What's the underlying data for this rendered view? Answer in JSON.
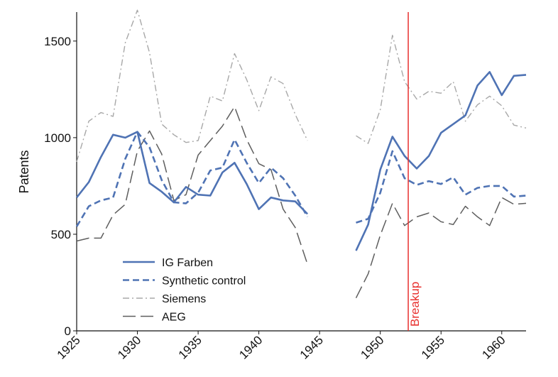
{
  "chart_data": {
    "type": "line",
    "title": "",
    "xlabel": "",
    "ylabel": "Patents",
    "xlim": [
      1925,
      1962
    ],
    "ylim": [
      0,
      1650
    ],
    "x_ticks": [
      "1925",
      "1930",
      "1935",
      "1940",
      "1945",
      "1950",
      "1955",
      "1960"
    ],
    "y_ticks": [
      "0",
      "500",
      "1000",
      "1500"
    ],
    "grid": false,
    "legend_position": "bottom-left",
    "series": [
      {
        "name": "IG Farben",
        "color": "#4f73b4",
        "dash": "solid",
        "segments": [
          {
            "x": [
              1925,
              1926,
              1927,
              1928,
              1929,
              1930,
              1931,
              1932,
              1933,
              1934,
              1935,
              1936,
              1937,
              1938,
              1939,
              1940,
              1941,
              1942,
              1943,
              1944
            ],
            "y": [
              690,
              770,
              900,
              1015,
              1000,
              1030,
              765,
              720,
              665,
              745,
              705,
              700,
              820,
              870,
              760,
              630,
              690,
              675,
              670,
              605
            ]
          },
          {
            "x": [
              1948,
              1949,
              1950,
              1951,
              1952,
              1953,
              1954,
              1955,
              1956,
              1957,
              1958,
              1959,
              1960,
              1961,
              1962
            ],
            "y": [
              415,
              550,
              835,
              1005,
              905,
              840,
              905,
              1025,
              1070,
              1115,
              1270,
              1340,
              1220,
              1320,
              1325
            ]
          }
        ]
      },
      {
        "name": "Synthetic control",
        "color": "#4f73b4",
        "dash": "dashed",
        "segments": [
          {
            "x": [
              1925,
              1926,
              1927,
              1928,
              1929,
              1930,
              1931,
              1932,
              1933,
              1934,
              1935,
              1936,
              1937,
              1938,
              1939,
              1940,
              1941,
              1942,
              1943,
              1944
            ],
            "y": [
              540,
              645,
              675,
              690,
              890,
              1030,
              950,
              780,
              665,
              660,
              715,
              830,
              845,
              990,
              870,
              765,
              845,
              790,
              700,
              590
            ]
          },
          {
            "x": [
              1948,
              1949,
              1950,
              1951,
              1952,
              1953,
              1954,
              1955,
              1956,
              1957,
              1958,
              1959,
              1960,
              1961,
              1962
            ],
            "y": [
              560,
              580,
              715,
              930,
              790,
              755,
              775,
              760,
              795,
              705,
              740,
              750,
              750,
              695,
              700
            ]
          }
        ]
      },
      {
        "name": "Siemens",
        "color": "#a8a8a8",
        "dash": "dashdot",
        "segments": [
          {
            "x": [
              1925,
              1926,
              1927,
              1928,
              1929,
              1930,
              1931,
              1932,
              1933,
              1934,
              1935,
              1936,
              1937,
              1938,
              1939,
              1940,
              1941,
              1942,
              1943,
              1944
            ],
            "y": [
              875,
              1085,
              1130,
              1110,
              1490,
              1660,
              1440,
              1070,
              1015,
              975,
              985,
              1215,
              1190,
              1435,
              1300,
              1140,
              1315,
              1280,
              1120,
              985
            ]
          },
          {
            "x": [
              1948,
              1949,
              1950,
              1951,
              1952,
              1953,
              1954,
              1955,
              1956,
              1957,
              1958,
              1959,
              1960,
              1961,
              1962
            ],
            "y": [
              1010,
              970,
              1145,
              1530,
              1290,
              1200,
              1240,
              1230,
              1290,
              1085,
              1170,
              1215,
              1165,
              1065,
              1050
            ]
          }
        ]
      },
      {
        "name": "AEG",
        "color": "#5e5e5e",
        "dash": "longdash",
        "segments": [
          {
            "x": [
              1925,
              1926,
              1927,
              1928,
              1929,
              1930,
              1931,
              1932,
              1933,
              1934,
              1935,
              1936,
              1937,
              1938,
              1939,
              1940,
              1941,
              1942,
              1943,
              1944
            ],
            "y": [
              465,
              480,
              480,
              600,
              655,
              930,
              1035,
              915,
              675,
              705,
              910,
              985,
              1060,
              1160,
              990,
              865,
              835,
              630,
              535,
              345
            ]
          },
          {
            "x": [
              1948,
              1949,
              1950,
              1951,
              1952,
              1953,
              1954,
              1955,
              1956,
              1957,
              1958,
              1959,
              1960,
              1961,
              1962
            ],
            "y": [
              170,
              295,
              495,
              660,
              545,
              590,
              610,
              565,
              550,
              645,
              590,
              545,
              690,
              655,
              660
            ]
          }
        ]
      }
    ],
    "event_line": {
      "x": 1952.3,
      "label": "Breakup",
      "color": "#e8312f"
    }
  }
}
